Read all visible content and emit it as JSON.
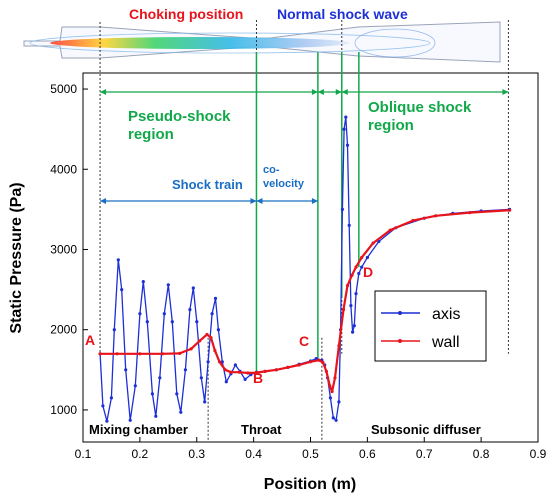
{
  "colors": {
    "axis_series": "#1d2fd6",
    "wall_series": "#e8141c",
    "green_annotation": "#12a84a",
    "blue_annotation": "#1a6fc4",
    "header_red": "#e8141c",
    "header_blue": "#1d2fd6"
  },
  "header": {
    "choking_label": "Choking position",
    "shock_label": "Normal shock wave"
  },
  "annotations": {
    "pseudo_shock": "Pseudo-shock\nregion",
    "oblique_shock": "Oblique shock\nregion",
    "shock_train": "Shock train",
    "co_velocity": "co-\nvelocity",
    "mixing_chamber": "Mixing chamber",
    "throat": "Throat",
    "subsonic_diffuser": "Subsonic diffuser",
    "points": [
      "A",
      "B",
      "C",
      "D"
    ]
  },
  "legend": {
    "items": [
      "axis",
      "wall"
    ]
  },
  "chart_data": {
    "type": "line",
    "xlabel": "Position (m)",
    "ylabel": "Static Pressure (Pa)",
    "xlim": [
      0.1,
      0.9
    ],
    "ylim": [
      600,
      5200
    ],
    "x_ticks": [
      0.1,
      0.2,
      0.3,
      0.4,
      0.5,
      0.6,
      0.7,
      0.8,
      0.9
    ],
    "x_tick_labels": [
      "0.1",
      "0.2",
      "0.3",
      "0.4",
      "0.5",
      "0.6",
      "0.7",
      "0.8",
      "0.9"
    ],
    "y_ticks": [
      1000,
      2000,
      3000,
      4000,
      5000
    ],
    "y_tick_labels": [
      "1000",
      "2000",
      "3000",
      "4000",
      "5000"
    ],
    "grid": false,
    "legend_position": "lower-right",
    "series": [
      {
        "name": "axis",
        "color": "#1d2fd6",
        "points": [
          [
            0.13,
            1700
          ],
          [
            0.135,
            1050
          ],
          [
            0.142,
            860
          ],
          [
            0.15,
            1150
          ],
          [
            0.155,
            2000
          ],
          [
            0.162,
            2870
          ],
          [
            0.168,
            2500
          ],
          [
            0.175,
            1500
          ],
          [
            0.183,
            870
          ],
          [
            0.192,
            1300
          ],
          [
            0.2,
            2200
          ],
          [
            0.206,
            2600
          ],
          [
            0.213,
            2100
          ],
          [
            0.222,
            1200
          ],
          [
            0.228,
            920
          ],
          [
            0.235,
            1400
          ],
          [
            0.243,
            2200
          ],
          [
            0.25,
            2560
          ],
          [
            0.257,
            2100
          ],
          [
            0.265,
            1200
          ],
          [
            0.272,
            970
          ],
          [
            0.28,
            1500
          ],
          [
            0.288,
            2250
          ],
          [
            0.294,
            2520
          ],
          [
            0.3,
            2100
          ],
          [
            0.308,
            1400
          ],
          [
            0.314,
            1100
          ],
          [
            0.32,
            1600
          ],
          [
            0.327,
            2200
          ],
          [
            0.333,
            2390
          ],
          [
            0.338,
            2000
          ],
          [
            0.345,
            1600
          ],
          [
            0.352,
            1350
          ],
          [
            0.36,
            1450
          ],
          [
            0.368,
            1560
          ],
          [
            0.376,
            1480
          ],
          [
            0.385,
            1380
          ],
          [
            0.395,
            1440
          ],
          [
            0.405,
            1470
          ],
          [
            0.42,
            1480
          ],
          [
            0.44,
            1500
          ],
          [
            0.46,
            1530
          ],
          [
            0.48,
            1570
          ],
          [
            0.5,
            1610
          ],
          [
            0.51,
            1640
          ],
          [
            0.52,
            1620
          ],
          [
            0.525,
            1560
          ],
          [
            0.53,
            1400
          ],
          [
            0.535,
            1150
          ],
          [
            0.54,
            900
          ],
          [
            0.545,
            870
          ],
          [
            0.55,
            1100
          ],
          [
            0.553,
            2000
          ],
          [
            0.556,
            3500
          ],
          [
            0.559,
            4500
          ],
          [
            0.562,
            4650
          ],
          [
            0.565,
            4300
          ],
          [
            0.568,
            3300
          ],
          [
            0.571,
            2300
          ],
          [
            0.574,
            1970
          ],
          [
            0.577,
            2050
          ],
          [
            0.58,
            2450
          ],
          [
            0.585,
            2700
          ],
          [
            0.59,
            2780
          ],
          [
            0.6,
            2900
          ],
          [
            0.62,
            3100
          ],
          [
            0.65,
            3270
          ],
          [
            0.7,
            3390
          ],
          [
            0.75,
            3450
          ],
          [
            0.8,
            3480
          ],
          [
            0.85,
            3500
          ]
        ]
      },
      {
        "name": "wall",
        "color": "#e8141c",
        "points": [
          [
            0.13,
            1700
          ],
          [
            0.16,
            1700
          ],
          [
            0.2,
            1700
          ],
          [
            0.24,
            1700
          ],
          [
            0.27,
            1705
          ],
          [
            0.29,
            1760
          ],
          [
            0.305,
            1860
          ],
          [
            0.318,
            1940
          ],
          [
            0.325,
            1900
          ],
          [
            0.332,
            1740
          ],
          [
            0.34,
            1600
          ],
          [
            0.35,
            1500
          ],
          [
            0.36,
            1470
          ],
          [
            0.375,
            1470
          ],
          [
            0.39,
            1460
          ],
          [
            0.405,
            1465
          ],
          [
            0.42,
            1480
          ],
          [
            0.44,
            1500
          ],
          [
            0.46,
            1530
          ],
          [
            0.48,
            1560
          ],
          [
            0.5,
            1600
          ],
          [
            0.515,
            1620
          ],
          [
            0.522,
            1590
          ],
          [
            0.528,
            1480
          ],
          [
            0.534,
            1300
          ],
          [
            0.538,
            1230
          ],
          [
            0.543,
            1400
          ],
          [
            0.55,
            1800
          ],
          [
            0.558,
            2250
          ],
          [
            0.565,
            2550
          ],
          [
            0.573,
            2680
          ],
          [
            0.58,
            2780
          ],
          [
            0.59,
            2900
          ],
          [
            0.61,
            3080
          ],
          [
            0.64,
            3240
          ],
          [
            0.68,
            3360
          ],
          [
            0.72,
            3420
          ],
          [
            0.78,
            3460
          ],
          [
            0.85,
            3490
          ]
        ]
      }
    ]
  }
}
